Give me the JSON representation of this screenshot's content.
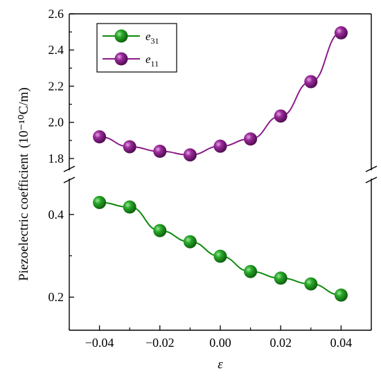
{
  "chart_data": {
    "type": "line",
    "xlabel": "ε",
    "ylabel": "Piezoelectric coefficient",
    "ylabel_unit": "(10⁻¹⁰C/m)",
    "x": [
      -0.04,
      -0.03,
      -0.02,
      -0.01,
      0.0,
      0.01,
      0.02,
      0.03,
      0.04
    ],
    "x_ticks": [
      "−0.04",
      "−0.02",
      "0.00",
      "0.02",
      "0.04"
    ],
    "x_tick_values": [
      -0.04,
      -0.02,
      0.0,
      0.02,
      0.04
    ],
    "xlim": [
      -0.05,
      0.05
    ],
    "y_break": true,
    "y_upper_range": [
      1.75,
      2.6
    ],
    "y_upper_ticks": [
      "1.8",
      "2.0",
      "2.2",
      "2.4",
      "2.6"
    ],
    "y_upper_tick_values": [
      1.8,
      2.0,
      2.2,
      2.4,
      2.6
    ],
    "y_lower_range": [
      0.12,
      0.48
    ],
    "y_lower_ticks": [
      "0.2",
      "0.4"
    ],
    "y_lower_tick_values": [
      0.2,
      0.4
    ],
    "legend_position": "top-left",
    "series": [
      {
        "name_base": "e",
        "name_sub": "31",
        "color": "#0b8a0b",
        "marker_color": "#1a9a1a",
        "panel": "lower",
        "values": [
          0.429,
          0.418,
          0.361,
          0.334,
          0.299,
          0.262,
          0.246,
          0.232,
          0.205
        ]
      },
      {
        "name_base": "e",
        "name_sub": "11",
        "color": "#8b1a8b",
        "marker_color": "#9a2a9a",
        "panel": "upper",
        "values": [
          1.92,
          1.865,
          1.84,
          1.82,
          1.868,
          1.908,
          2.035,
          2.225,
          2.495
        ]
      }
    ],
    "grid": false
  }
}
